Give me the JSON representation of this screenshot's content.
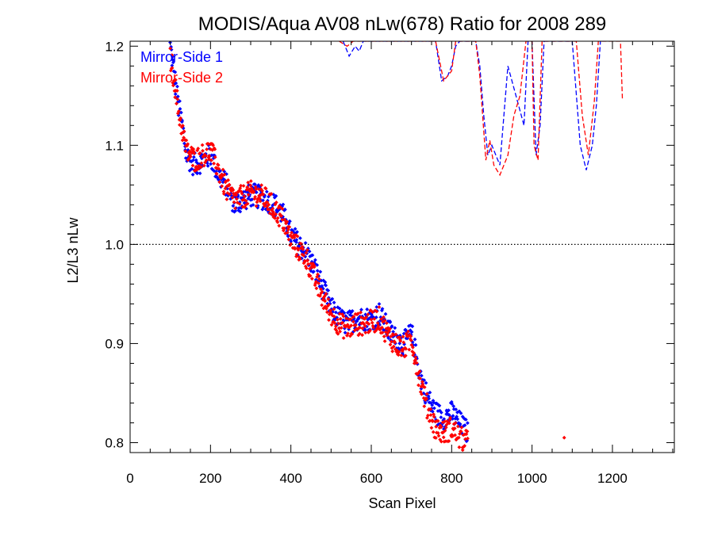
{
  "chart_data": {
    "type": "scatter",
    "title": "MODIS/Aqua AV08 nLw(678) Ratio for 2008 289",
    "xlabel": "Scan Pixel",
    "ylabel": "L2/L3 nLw",
    "xlim": [
      0,
      1354
    ],
    "ylim": [
      0.79,
      1.205
    ],
    "x_ticks": [
      "0",
      "200",
      "400",
      "600",
      "800",
      "1000",
      "1200"
    ],
    "y_ticks": [
      "0.8",
      "0.9",
      "1.0",
      "1.1",
      "1.2"
    ],
    "reference_line": {
      "y": 1.0,
      "style": "dotted"
    },
    "grid": false,
    "legend_position": "top-left",
    "series": [
      {
        "name": "Mirror-Side 1",
        "color": "#0000ff",
        "scatter_trend": [
          [
            100,
            1.2
          ],
          [
            110,
            1.17
          ],
          [
            120,
            1.14
          ],
          [
            130,
            1.12
          ],
          [
            140,
            1.09
          ],
          [
            160,
            1.08
          ],
          [
            180,
            1.085
          ],
          [
            200,
            1.09
          ],
          [
            220,
            1.07
          ],
          [
            240,
            1.06
          ],
          [
            260,
            1.04
          ],
          [
            280,
            1.045
          ],
          [
            300,
            1.05
          ],
          [
            320,
            1.048
          ],
          [
            340,
            1.045
          ],
          [
            360,
            1.04
          ],
          [
            380,
            1.03
          ],
          [
            400,
            1.01
          ],
          [
            420,
            1.0
          ],
          [
            440,
            0.99
          ],
          [
            460,
            0.975
          ],
          [
            480,
            0.955
          ],
          [
            500,
            0.935
          ],
          [
            520,
            0.925
          ],
          [
            540,
            0.92
          ],
          [
            560,
            0.925
          ],
          [
            580,
            0.925
          ],
          [
            600,
            0.925
          ],
          [
            620,
            0.93
          ],
          [
            640,
            0.915
          ],
          [
            660,
            0.905
          ],
          [
            680,
            0.9
          ],
          [
            700,
            0.91
          ],
          [
            720,
            0.87
          ],
          [
            740,
            0.845
          ],
          [
            760,
            0.83
          ],
          [
            780,
            0.825
          ],
          [
            800,
            0.83
          ],
          [
            820,
            0.82
          ],
          [
            840,
            0.81
          ]
        ],
        "dashed_line": [
          [
            530,
            1.205
          ],
          [
            545,
            1.19
          ],
          [
            560,
            1.2
          ],
          [
            570,
            1.195
          ],
          [
            580,
            1.205
          ],
          [
            590,
            1.205
          ],
          [
            600,
            1.205
          ],
          [
            700,
            1.205
          ],
          [
            760,
            1.205
          ],
          [
            775,
            1.165
          ],
          [
            790,
            1.17
          ],
          [
            800,
            1.18
          ],
          [
            810,
            1.2
          ],
          [
            820,
            1.205
          ],
          [
            830,
            1.205
          ],
          [
            860,
            1.205
          ],
          [
            870,
            1.18
          ],
          [
            880,
            1.13
          ],
          [
            890,
            1.09
          ],
          [
            900,
            1.1
          ],
          [
            910,
            1.09
          ],
          [
            920,
            1.08
          ],
          [
            940,
            1.18
          ],
          [
            960,
            1.15
          ],
          [
            980,
            1.12
          ],
          [
            990,
            1.205
          ],
          [
            1000,
            1.205
          ],
          [
            1010,
            1.09
          ],
          [
            1020,
            1.12
          ],
          [
            1030,
            1.205
          ],
          [
            1100,
            1.205
          ],
          [
            1120,
            1.1
          ],
          [
            1135,
            1.075
          ],
          [
            1150,
            1.1
          ],
          [
            1160,
            1.14
          ],
          [
            1170,
            1.205
          ]
        ]
      },
      {
        "name": "Mirror-Side 2",
        "color": "#ff0000",
        "scatter_trend": [
          [
            100,
            1.19
          ],
          [
            110,
            1.165
          ],
          [
            120,
            1.135
          ],
          [
            130,
            1.115
          ],
          [
            140,
            1.095
          ],
          [
            160,
            1.085
          ],
          [
            180,
            1.09
          ],
          [
            200,
            1.095
          ],
          [
            220,
            1.075
          ],
          [
            240,
            1.055
          ],
          [
            260,
            1.045
          ],
          [
            280,
            1.048
          ],
          [
            300,
            1.052
          ],
          [
            320,
            1.05
          ],
          [
            340,
            1.045
          ],
          [
            360,
            1.035
          ],
          [
            380,
            1.025
          ],
          [
            400,
            1.005
          ],
          [
            420,
            0.995
          ],
          [
            440,
            0.985
          ],
          [
            460,
            0.965
          ],
          [
            480,
            0.945
          ],
          [
            500,
            0.93
          ],
          [
            520,
            0.92
          ],
          [
            540,
            0.915
          ],
          [
            560,
            0.92
          ],
          [
            580,
            0.92
          ],
          [
            600,
            0.922
          ],
          [
            620,
            0.925
          ],
          [
            640,
            0.91
          ],
          [
            660,
            0.9
          ],
          [
            680,
            0.895
          ],
          [
            700,
            0.905
          ],
          [
            720,
            0.865
          ],
          [
            740,
            0.835
          ],
          [
            760,
            0.815
          ],
          [
            780,
            0.81
          ],
          [
            800,
            0.815
          ],
          [
            820,
            0.805
          ],
          [
            840,
            0.8
          ]
        ],
        "dashed_line": [
          [
            520,
            1.205
          ],
          [
            540,
            1.2
          ],
          [
            555,
            1.205
          ],
          [
            760,
            1.205
          ],
          [
            780,
            1.165
          ],
          [
            800,
            1.175
          ],
          [
            810,
            1.205
          ],
          [
            860,
            1.205
          ],
          [
            870,
            1.17
          ],
          [
            885,
            1.085
          ],
          [
            895,
            1.105
          ],
          [
            905,
            1.08
          ],
          [
            920,
            1.07
          ],
          [
            940,
            1.09
          ],
          [
            955,
            1.13
          ],
          [
            970,
            1.15
          ],
          [
            985,
            1.205
          ],
          [
            1000,
            1.205
          ],
          [
            1005,
            1.1
          ],
          [
            1015,
            1.085
          ],
          [
            1025,
            1.205
          ],
          [
            1110,
            1.205
          ],
          [
            1125,
            1.13
          ],
          [
            1140,
            1.09
          ],
          [
            1155,
            1.145
          ],
          [
            1165,
            1.205
          ],
          [
            1220,
            1.205
          ],
          [
            1225,
            1.145
          ]
        ],
        "outlier": [
          1080,
          0.805
        ]
      }
    ]
  }
}
